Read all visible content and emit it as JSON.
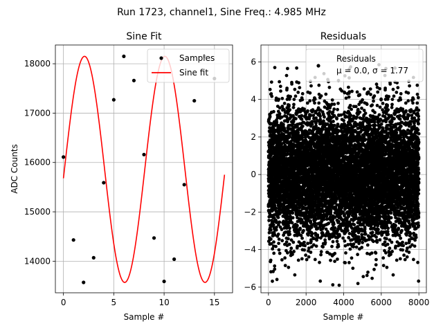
{
  "figure_title": "Run 1723, channel1, Sine Freq.: 4.985 MHz",
  "chart_data": [
    {
      "type": "scatter",
      "title": "Sine Fit",
      "xlabel": "Sample #",
      "ylabel": "ADC Counts",
      "xlim": [
        -0.8,
        16.8
      ],
      "ylim": [
        13360,
        18380
      ],
      "xticks": [
        0,
        5,
        10,
        15
      ],
      "yticks": [
        14000,
        15000,
        16000,
        17000,
        18000
      ],
      "grid": true,
      "legend_position": "top-right",
      "series": [
        {
          "name": "Samples",
          "kind": "scatter",
          "color": "#000000",
          "x": [
            0,
            1,
            2,
            3,
            4,
            5,
            6,
            7,
            8,
            9,
            10,
            11,
            12,
            13,
            14,
            15
          ],
          "y": [
            16110,
            14430,
            13570,
            14070,
            15590,
            17270,
            18150,
            17660,
            16160,
            14470,
            13590,
            14040,
            15550,
            17250,
            18150,
            17700
          ]
        },
        {
          "name": "Sine fit",
          "kind": "line",
          "color": "#ff0000",
          "offset": 15860,
          "amplitude": 2290,
          "period": 7.98,
          "phase_sample": 0.1,
          "x_range": [
            0,
            16
          ]
        }
      ]
    },
    {
      "type": "scatter",
      "title": "Residuals",
      "xlabel": "Sample #",
      "ylabel": "",
      "xlim": [
        -400,
        8400
      ],
      "ylim": [
        -6.3,
        6.9
      ],
      "xticks": [
        0,
        2000,
        4000,
        6000,
        8000
      ],
      "yticks": [
        -6,
        -4,
        -2,
        0,
        2,
        4,
        6
      ],
      "grid": true,
      "legend_position": "top-right",
      "series": [
        {
          "name": "Residuals",
          "kind": "scatter",
          "color": "#000000",
          "n_points": 8000,
          "mean": 0.0,
          "sigma": 1.77
        }
      ],
      "legend_stats": "μ = 0.0, σ = 1.77"
    }
  ]
}
